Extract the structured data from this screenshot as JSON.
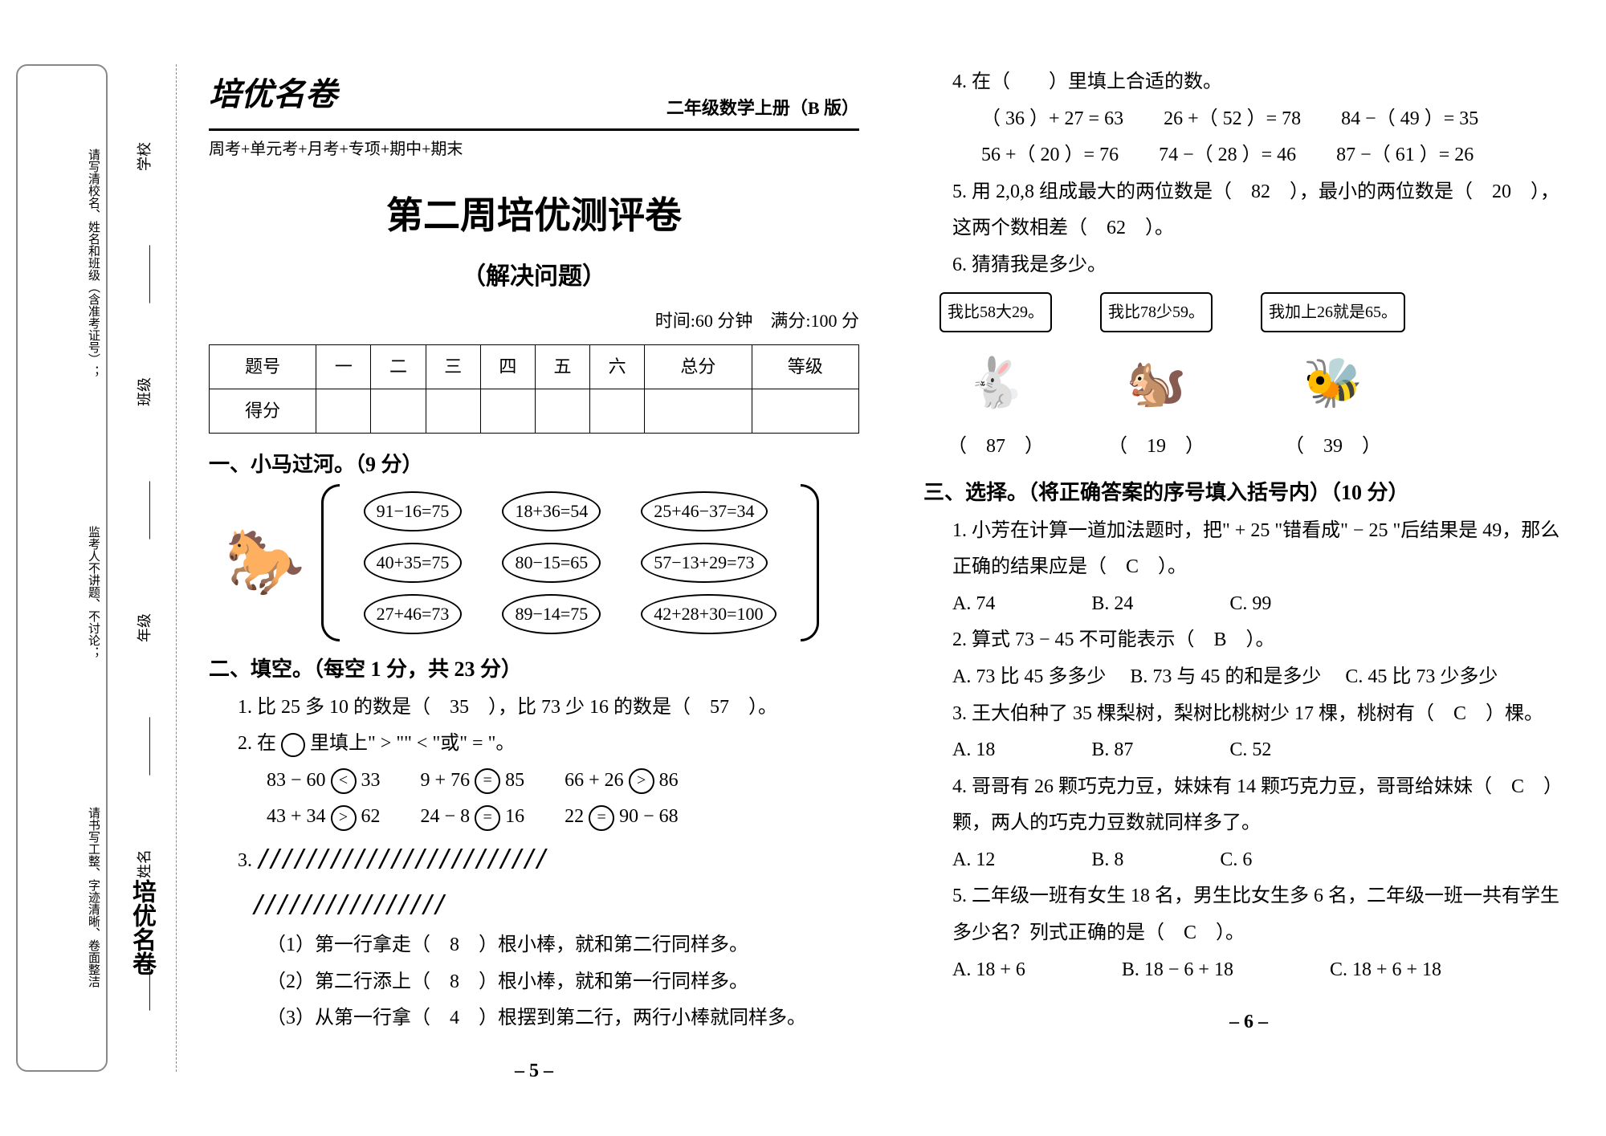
{
  "meta": {
    "brand": "培优名卷",
    "series": "二年级数学上册（B 版）",
    "subline": "周考+单元考+月考+专项+期中+期末",
    "title": "第二周培优测评卷",
    "subtitle": "（解决问题）",
    "timing": "时间:60 分钟　满分:100 分",
    "page_left": "– 5 –",
    "page_right": "– 6 –"
  },
  "sidebar": {
    "a": "请写清校名、姓名和班级（含准考证号）；",
    "b": "监考人不讲题、不讨论；",
    "c": "请书写工整、字迹清晰、卷面整洁",
    "s1": "学校",
    "s2": "班级",
    "s3": "年级",
    "s4": "姓名",
    "logo": "培优名卷"
  },
  "score_table": {
    "h0": "题号",
    "h1": "一",
    "h2": "二",
    "h3": "三",
    "h4": "四",
    "h5": "五",
    "h6": "六",
    "h7": "总分",
    "h8": "等级",
    "r0": "得分"
  },
  "sec1": {
    "title": "一、小马过河。（9 分）",
    "cells": [
      [
        "91−16=75",
        "18+36=54",
        "25+46−37=34"
      ],
      [
        "40+35=75",
        "80−15=65",
        "57−13+29=73"
      ],
      [
        "27+46=73",
        "89−14=75",
        "42+28+30=100"
      ]
    ]
  },
  "sec2": {
    "title": "二、填空。（每空 1 分，共 23 分）",
    "q1": "1. 比 25 多 10 的数是（　35　），比 73 少 16 的数是（　57　）。",
    "q2_lead": "2. 在",
    "q2_tail": "里填上\" > \"\" < \"或\" = \"。",
    "q2_rows": [
      [
        {
          "l": "83 − 60",
          "s": "<",
          "r": "33"
        },
        {
          "l": "9 + 76",
          "s": "=",
          "r": "85"
        },
        {
          "l": "66 + 26",
          "s": ">",
          "r": "86"
        }
      ],
      [
        {
          "l": "43 + 34",
          "s": ">",
          "r": "62"
        },
        {
          "l": "24 − 8",
          "s": "=",
          "r": "16"
        },
        {
          "l": "22",
          "s": "=",
          "r": "90 − 68"
        }
      ]
    ],
    "q3_label": "3.",
    "q3_row1": "////////////////////////",
    "q3_row2": "////////////////",
    "q3_a": "（1）第一行拿走（　8　）根小棒，就和第二行同样多。",
    "q3_b": "（2）第二行添上（　8　）根小棒，就和第一行同样多。",
    "q3_c": "（3）从第一行拿（　4　）根摆到第二行，两行小棒就同样多。",
    "q4_lead": "4. 在（　　）里填上合适的数。",
    "q4_rows": [
      [
        "（ 36 ）+ 27 = 63",
        "26 +（ 52 ）= 78",
        "84 −（ 49 ）= 35"
      ],
      [
        "56 +（ 20 ）= 76",
        "74 −（ 28 ）= 46",
        "87 −（ 61 ）= 26"
      ]
    ],
    "q5": "5. 用 2,0,8 组成最大的两位数是（　82　），最小的两位数是（　20　），这两个数相差（　62　）。",
    "q6_lead": "6. 猜猜我是多少。",
    "q6": [
      {
        "bubble": "我比58大29。",
        "emoji": "🐇",
        "ans": "（　87　）"
      },
      {
        "bubble": "我比78少59。",
        "emoji": "🐿️",
        "ans": "（　19　）"
      },
      {
        "bubble": "我加上26就是65。",
        "emoji": "🐝",
        "ans": "（　39　）"
      }
    ]
  },
  "sec3": {
    "title": "三、选择。（将正确答案的序号填入括号内）（10 分）",
    "items": [
      {
        "stem": "1. 小芳在计算一道加法题时，把\" + 25 \"错看成\" − 25 \"后结果是 49，那么正确的结果应是（　C　）。",
        "opts": [
          "A. 74",
          "B. 24",
          "C. 99"
        ]
      },
      {
        "stem": "2. 算式 73 − 45 不可能表示（　B　）。",
        "opts": [
          "A. 73 比 45 多多少",
          "B. 73 与 45 的和是多少",
          "C. 45 比 73 少多少"
        ]
      },
      {
        "stem": "3. 王大伯种了 35 棵梨树，梨树比桃树少 17 棵，桃树有（　C　）棵。",
        "opts": [
          "A. 18",
          "B. 87",
          "C. 52"
        ]
      },
      {
        "stem": "4. 哥哥有 26 颗巧克力豆，妹妹有 14 颗巧克力豆，哥哥给妹妹（　C　）颗，两人的巧克力豆数就同样多了。",
        "opts": [
          "A. 12",
          "B. 8",
          "C. 6"
        ]
      },
      {
        "stem": "5. 二年级一班有女生 18 名，男生比女生多 6 名，二年级一班一共有学生多少名？列式正确的是（　C　）。",
        "opts": [
          "A. 18 + 6",
          "B. 18 − 6 + 18",
          "C. 18 + 6 + 18"
        ]
      }
    ]
  }
}
